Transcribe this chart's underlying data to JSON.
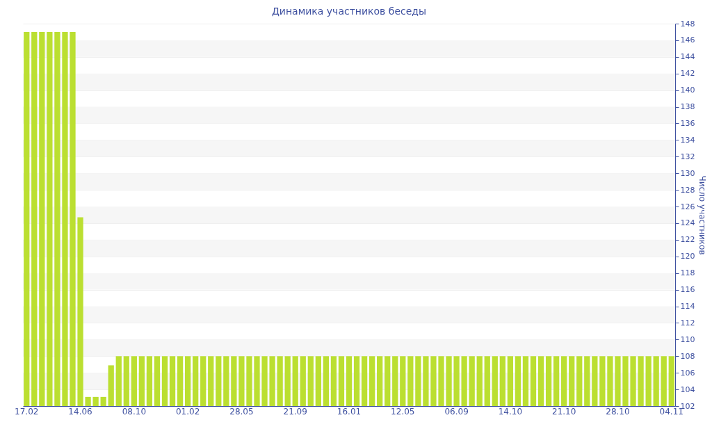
{
  "chart_data": {
    "type": "bar",
    "title": "Динамика участников беседы",
    "ylabel": "Число участников",
    "categories": [
      "17.02",
      null,
      null,
      null,
      null,
      null,
      null,
      "14.06",
      null,
      null,
      null,
      null,
      null,
      null,
      "08.10",
      null,
      null,
      null,
      null,
      null,
      null,
      "01.02",
      null,
      null,
      null,
      null,
      null,
      null,
      "28.05",
      null,
      null,
      null,
      null,
      null,
      null,
      "21.09",
      null,
      null,
      null,
      null,
      null,
      null,
      "16.01",
      null,
      null,
      null,
      null,
      null,
      null,
      "12.05",
      null,
      null,
      null,
      null,
      null,
      null,
      "06.09",
      null,
      null,
      null,
      null,
      null,
      null,
      "14.10",
      null,
      null,
      null,
      null,
      null,
      null,
      "21.10",
      null,
      null,
      null,
      null,
      null,
      null,
      "28.10",
      null,
      null,
      null,
      null,
      null,
      null,
      "04.11"
    ],
    "values": [
      147,
      147,
      147,
      147,
      147,
      147,
      147,
      124.7,
      103.1,
      103.1,
      103.1,
      106.9,
      108,
      108,
      108,
      108,
      108,
      108,
      108,
      108,
      108,
      108,
      108,
      108,
      108,
      108,
      108,
      108,
      108,
      108,
      108,
      108,
      108,
      108,
      108,
      108,
      108,
      108,
      108,
      108,
      108,
      108,
      108,
      108,
      108,
      108,
      108,
      108,
      108,
      108,
      108,
      108,
      108,
      108,
      108,
      108,
      108,
      108,
      108,
      108,
      108,
      108,
      108,
      108,
      108,
      108,
      108,
      108,
      108,
      108,
      108,
      108,
      108,
      108,
      108,
      108,
      108,
      108,
      108,
      108,
      108,
      108,
      108,
      108,
      108
    ],
    "color": "#bbdf31",
    "ylim": [
      102,
      148
    ],
    "yticks": [
      102,
      104,
      106,
      108,
      110,
      112,
      114,
      116,
      118,
      120,
      122,
      124,
      126,
      128,
      130,
      132,
      134,
      136,
      138,
      140,
      142,
      144,
      146,
      148
    ],
    "grid": "y"
  }
}
